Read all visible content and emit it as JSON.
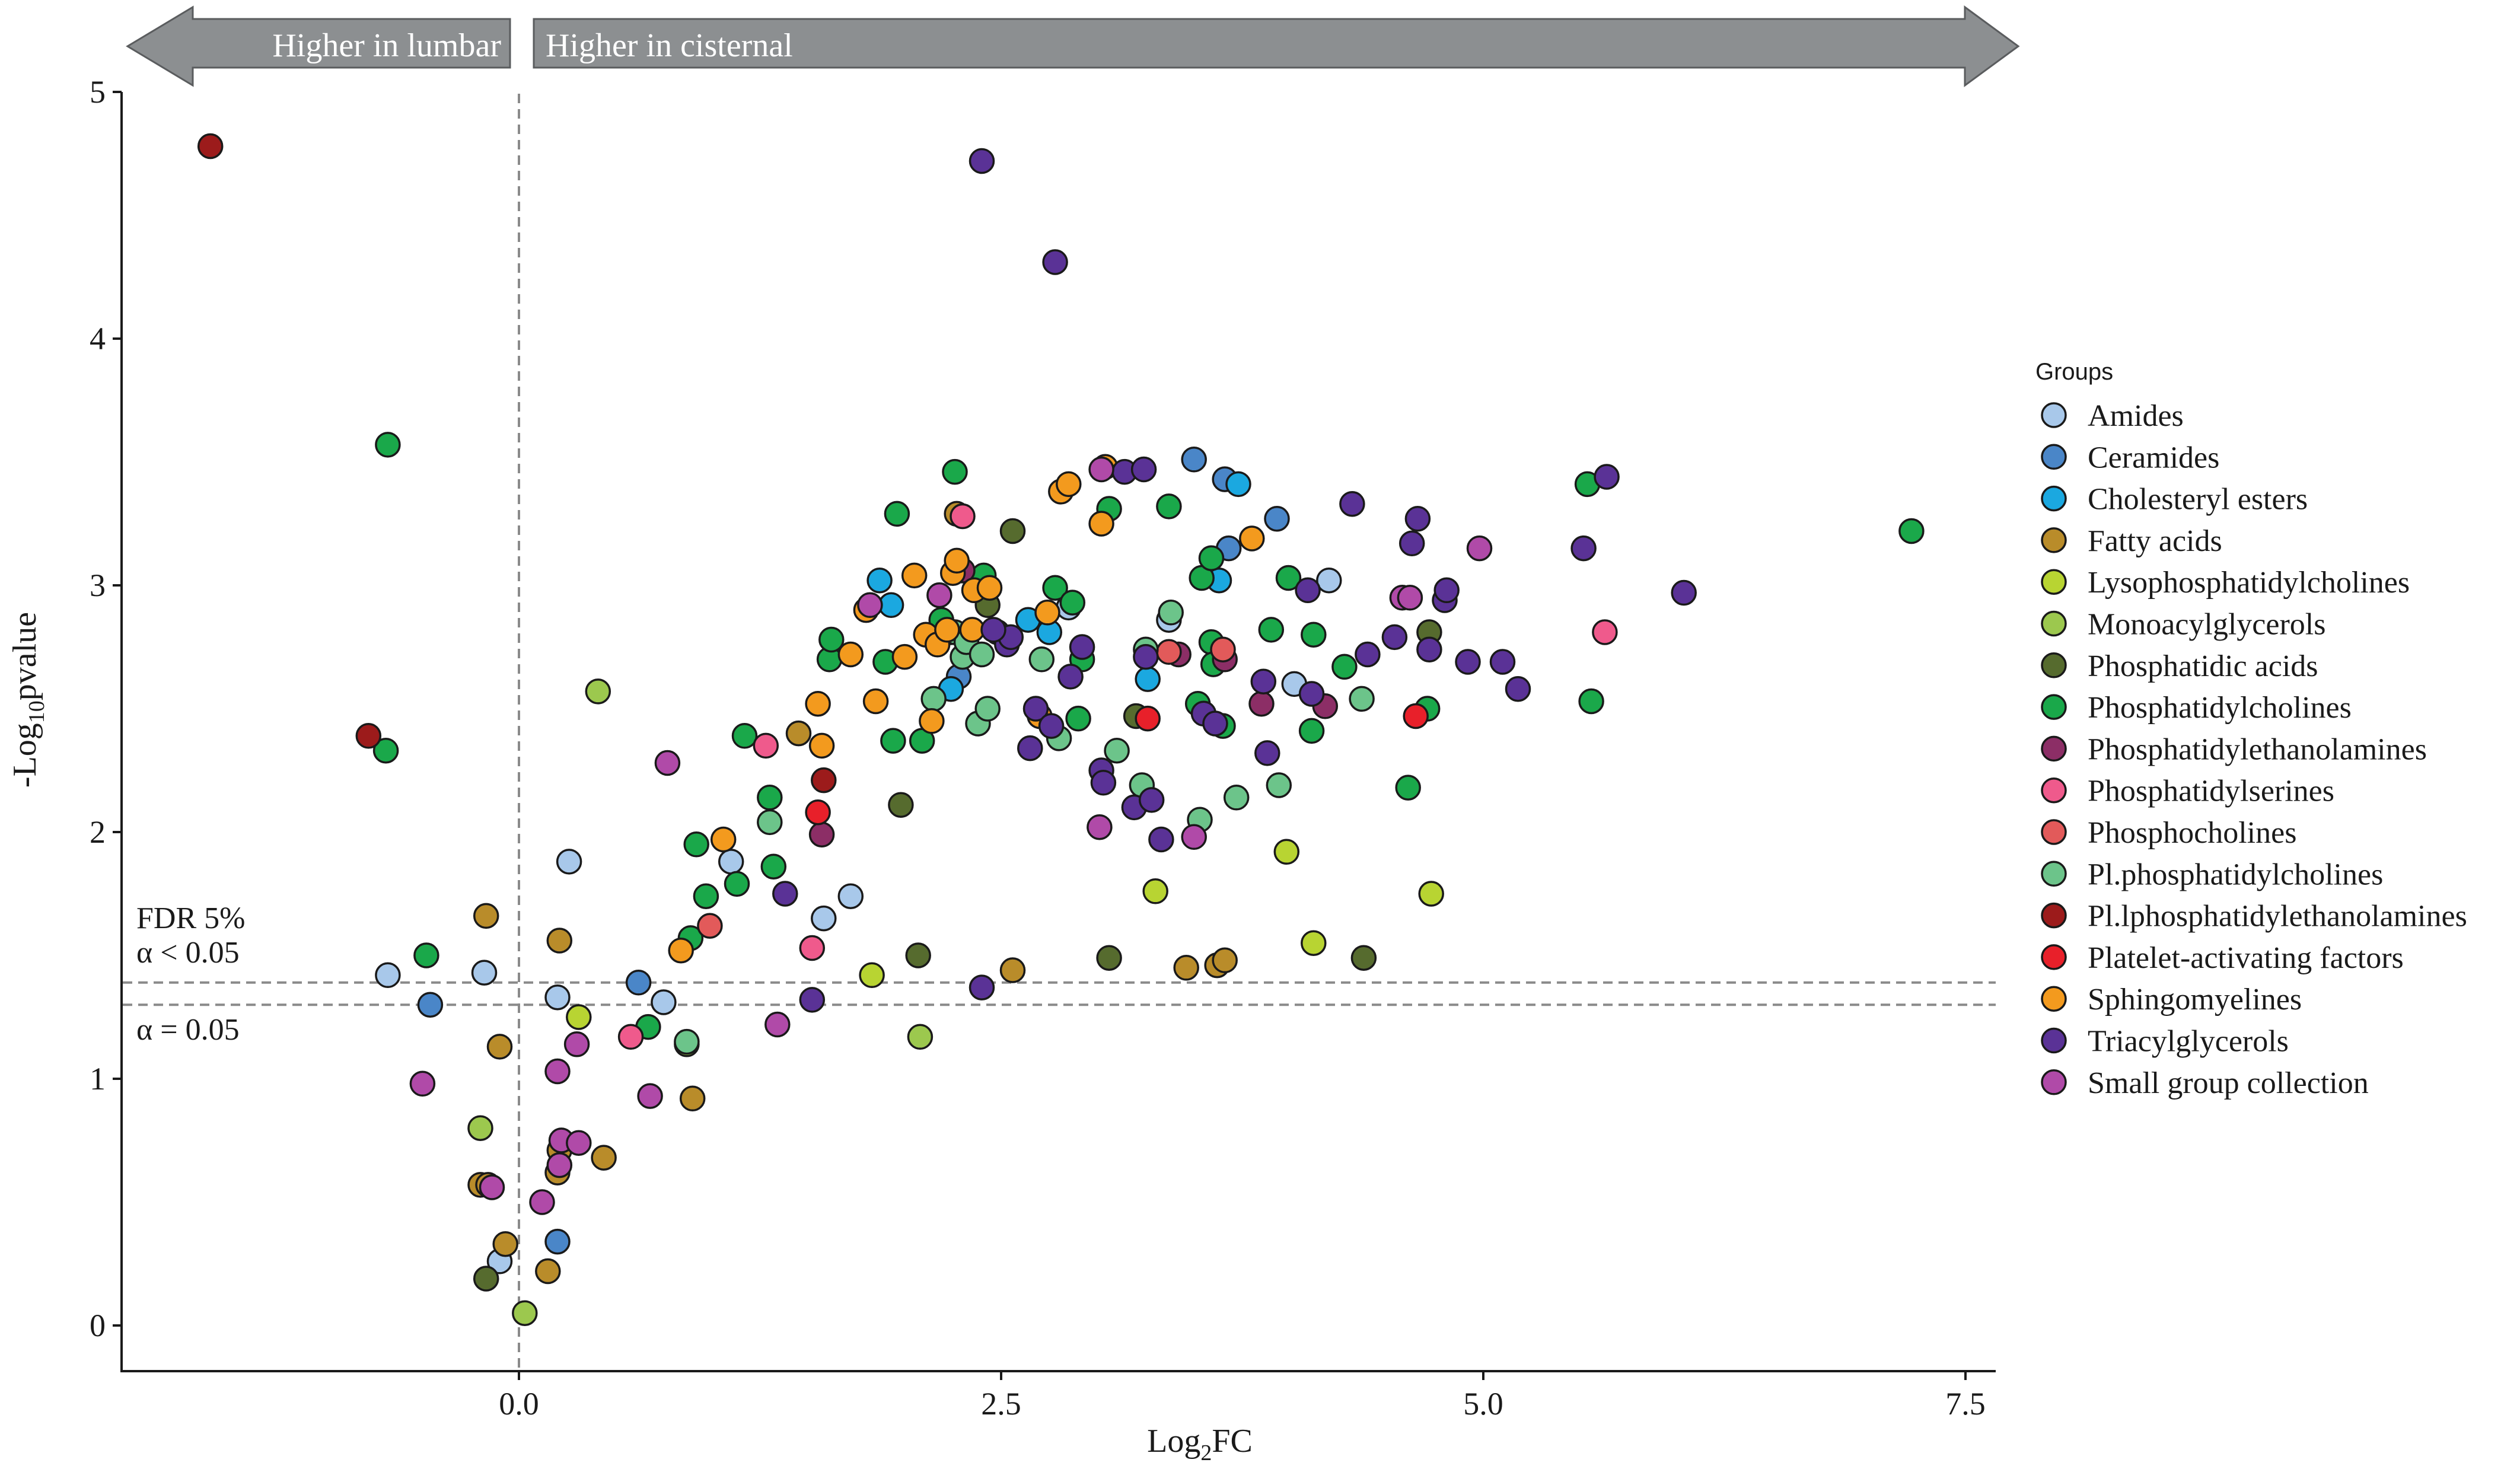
{
  "chart_data": {
    "type": "scatter",
    "title": "",
    "xlabel_base": "Log",
    "xlabel_sub": "2",
    "xlabel_rest": "FC",
    "ylabel_pre": "-Log",
    "ylabel_sub": "10",
    "ylabel_post": "pvalue",
    "xlim": [
      -2.05,
      7.7
    ],
    "ylim": [
      -0.2,
      5.05
    ],
    "xticks": [
      0.0,
      2.5,
      5.0,
      7.5
    ],
    "xtick_labels": [
      "0.0",
      "2.5",
      "5.0",
      "7.5"
    ],
    "yticks": [
      0,
      1,
      2,
      3,
      4,
      5
    ],
    "ytick_labels": [
      "0",
      "1",
      "2",
      "3",
      "4",
      "5"
    ],
    "grid": false,
    "arrows": {
      "left": "Higher in lumbar",
      "right": "Higher in cisternal"
    },
    "annotations": {
      "fdr_line1": "FDR 5%",
      "fdr_line2": "α < 0.05",
      "alpha_label": "α = 0.05"
    },
    "hlines": [
      1.39,
      1.3
    ],
    "vline": 0,
    "legend": {
      "title": "Groups",
      "position": "right"
    },
    "series": [
      {
        "name": "Amides",
        "color": "#a8c8ea",
        "points": [
          [
            -0.68,
            1.42
          ],
          [
            -0.18,
            1.43
          ],
          [
            0.2,
            1.33
          ],
          [
            0.26,
            1.88
          ],
          [
            0.75,
            1.31
          ],
          [
            1.1,
            1.88
          ],
          [
            1.58,
            1.65
          ],
          [
            1.72,
            1.74
          ],
          [
            2.85,
            2.91
          ],
          [
            3.37,
            2.86
          ],
          [
            4.02,
            2.6
          ],
          [
            4.2,
            3.02
          ],
          [
            -0.1,
            0.26
          ]
        ]
      },
      {
        "name": "Ceramides",
        "color": "#4a86c8",
        "points": [
          [
            -0.46,
            1.3
          ],
          [
            0.62,
            1.39
          ],
          [
            0.2,
            0.34
          ],
          [
            3.5,
            3.51
          ],
          [
            3.66,
            3.43
          ],
          [
            3.68,
            3.15
          ],
          [
            3.93,
            3.27
          ],
          [
            2.28,
            2.63
          ]
        ]
      },
      {
        "name": "Cholesteryl esters",
        "color": "#1ba8e0",
        "points": [
          [
            1.87,
            3.02
          ],
          [
            1.93,
            2.92
          ],
          [
            2.64,
            2.86
          ],
          [
            2.75,
            2.81
          ],
          [
            3.26,
            2.62
          ],
          [
            3.63,
            3.02
          ],
          [
            3.73,
            3.41
          ],
          [
            2.24,
            2.58
          ]
        ]
      },
      {
        "name": "Fatty acids",
        "color": "#b98c2a",
        "points": [
          [
            -0.17,
            1.66
          ],
          [
            -0.1,
            1.13
          ],
          [
            0.21,
            1.56
          ],
          [
            -0.2,
            0.57
          ],
          [
            -0.16,
            0.57
          ],
          [
            -0.07,
            0.33
          ],
          [
            0.15,
            0.22
          ],
          [
            0.2,
            0.62
          ],
          [
            0.21,
            0.71
          ],
          [
            0.44,
            0.68
          ],
          [
            0.9,
            0.92
          ],
          [
            1.45,
            2.4
          ],
          [
            2.56,
            1.44
          ],
          [
            3.46,
            1.45
          ],
          [
            3.62,
            1.46
          ],
          [
            3.66,
            1.48
          ],
          [
            2.27,
            3.29
          ]
        ]
      },
      {
        "name": "Lysophosphatidylcholines",
        "color": "#b8d432",
        "points": [
          [
            0.31,
            1.25
          ],
          [
            1.83,
            1.42
          ],
          [
            3.3,
            1.76
          ],
          [
            3.98,
            1.92
          ],
          [
            4.12,
            1.55
          ],
          [
            4.73,
            1.75
          ]
        ]
      },
      {
        "name": "Monoacylglycerols",
        "color": "#9cc84e",
        "points": [
          [
            0.41,
            2.57
          ],
          [
            -0.2,
            0.8
          ],
          [
            0.03,
            0.05
          ],
          [
            0.87,
            1.14
          ],
          [
            2.08,
            1.17
          ]
        ]
      },
      {
        "name": "Phosphatidic acids",
        "color": "#566b2e",
        "points": [
          [
            2.56,
            3.22
          ],
          [
            1.98,
            2.11
          ],
          [
            2.07,
            1.5
          ],
          [
            3.06,
            1.49
          ],
          [
            3.2,
            2.47
          ],
          [
            3.64,
            2.71
          ],
          [
            4.38,
            1.49
          ],
          [
            4.72,
            2.81
          ],
          [
            -0.17,
            0.19
          ],
          [
            2.43,
            2.92
          ]
        ]
      },
      {
        "name": "Phosphatidylcholines",
        "color": "#1aa84a",
        "points": [
          [
            -0.68,
            3.57
          ],
          [
            -0.69,
            2.33
          ],
          [
            -0.48,
            1.5
          ],
          [
            0.67,
            1.21
          ],
          [
            0.92,
            1.95
          ],
          [
            0.97,
            1.74
          ],
          [
            0.89,
            1.57
          ],
          [
            1.13,
            1.79
          ],
          [
            1.17,
            2.39
          ],
          [
            1.3,
            2.14
          ],
          [
            1.32,
            1.86
          ],
          [
            1.61,
            2.7
          ],
          [
            1.62,
            2.78
          ],
          [
            1.9,
            2.69
          ],
          [
            1.94,
            2.37
          ],
          [
            1.96,
            3.29
          ],
          [
            2.09,
            2.37
          ],
          [
            2.19,
            2.86
          ],
          [
            2.26,
            3.46
          ],
          [
            2.41,
            3.04
          ],
          [
            2.78,
            2.99
          ],
          [
            2.87,
            2.93
          ],
          [
            2.9,
            2.46
          ],
          [
            3.06,
            3.31
          ],
          [
            3.37,
            3.32
          ],
          [
            3.52,
            2.52
          ],
          [
            3.54,
            3.03
          ],
          [
            3.59,
            3.11
          ],
          [
            3.59,
            2.77
          ],
          [
            3.6,
            2.68
          ],
          [
            3.65,
            2.43
          ],
          [
            3.9,
            2.82
          ],
          [
            3.99,
            3.03
          ],
          [
            4.12,
            2.8
          ],
          [
            4.11,
            2.41
          ],
          [
            4.28,
            2.67
          ],
          [
            4.61,
            2.18
          ],
          [
            4.71,
            2.5
          ],
          [
            5.54,
            3.41
          ],
          [
            5.56,
            2.53
          ],
          [
            7.22,
            3.22
          ],
          [
            2.92,
            2.7
          ]
        ]
      },
      {
        "name": "Phosphatidylethanolamines",
        "color": "#8c2e66",
        "points": [
          [
            1.57,
            1.99
          ],
          [
            3.66,
            2.7
          ],
          [
            3.85,
            2.52
          ],
          [
            4.18,
            2.51
          ],
          [
            3.42,
            2.72
          ],
          [
            2.3,
            3.06
          ]
        ]
      },
      {
        "name": "Phosphatidylserines",
        "color": "#ef5a8c",
        "points": [
          [
            1.28,
            2.35
          ],
          [
            1.52,
            1.53
          ],
          [
            0.58,
            1.17
          ],
          [
            5.63,
            2.81
          ],
          [
            2.3,
            3.28
          ]
        ]
      },
      {
        "name": "Phosphocholines",
        "color": "#e25a5a",
        "points": [
          [
            0.99,
            1.62
          ],
          [
            3.37,
            2.73
          ],
          [
            3.65,
            2.74
          ]
        ]
      },
      {
        "name": "Pl.phosphatidylcholines",
        "color": "#6cc48a",
        "points": [
          [
            0.87,
            1.15
          ],
          [
            1.3,
            2.04
          ],
          [
            2.15,
            2.54
          ],
          [
            2.24,
            2.81
          ],
          [
            2.26,
            2.81
          ],
          [
            2.3,
            2.71
          ],
          [
            2.32,
            2.77
          ],
          [
            2.38,
            2.44
          ],
          [
            2.4,
            2.72
          ],
          [
            2.43,
            2.5
          ],
          [
            2.71,
            2.7
          ],
          [
            2.8,
            2.38
          ],
          [
            3.1,
            2.33
          ],
          [
            3.23,
            2.19
          ],
          [
            3.25,
            2.74
          ],
          [
            3.38,
            2.89
          ],
          [
            3.53,
            2.05
          ],
          [
            3.72,
            2.14
          ],
          [
            3.94,
            2.19
          ],
          [
            4.37,
            2.54
          ]
        ]
      },
      {
        "name": "Pl.lphosphatidylethanolamines",
        "color": "#9c1b1b",
        "points": [
          [
            -1.6,
            4.78
          ],
          [
            -0.78,
            2.39
          ],
          [
            1.58,
            2.21
          ]
        ]
      },
      {
        "name": "Platelet-activating factors",
        "color": "#e8202a",
        "points": [
          [
            1.55,
            2.08
          ],
          [
            3.26,
            2.46
          ],
          [
            4.65,
            2.47
          ]
        ]
      },
      {
        "name": "Sphingomyelines",
        "color": "#f39a1e",
        "points": [
          [
            0.84,
            1.52
          ],
          [
            1.06,
            1.97
          ],
          [
            1.55,
            2.52
          ],
          [
            1.57,
            2.35
          ],
          [
            1.72,
            2.72
          ],
          [
            1.8,
            2.9
          ],
          [
            1.85,
            2.53
          ],
          [
            2.0,
            2.71
          ],
          [
            2.05,
            3.04
          ],
          [
            2.11,
            2.8
          ],
          [
            2.14,
            2.45
          ],
          [
            2.17,
            2.76
          ],
          [
            2.22,
            2.82
          ],
          [
            2.25,
            3.05
          ],
          [
            2.27,
            3.1
          ],
          [
            2.35,
            2.82
          ],
          [
            2.36,
            2.98
          ],
          [
            2.44,
            2.99
          ],
          [
            2.7,
            2.47
          ],
          [
            2.74,
            2.89
          ],
          [
            2.81,
            3.38
          ],
          [
            2.85,
            3.41
          ],
          [
            3.02,
            3.25
          ],
          [
            3.04,
            3.48
          ],
          [
            3.8,
            3.19
          ]
        ]
      },
      {
        "name": "Triacylglycerols",
        "color": "#5a3296",
        "points": [
          [
            1.38,
            1.75
          ],
          [
            1.52,
            1.32
          ],
          [
            2.4,
            1.37
          ],
          [
            2.4,
            4.72
          ],
          [
            2.78,
            4.31
          ],
          [
            2.48,
            2.81
          ],
          [
            2.53,
            2.76
          ],
          [
            2.55,
            2.79
          ],
          [
            2.65,
            2.34
          ],
          [
            2.68,
            2.5
          ],
          [
            2.76,
            2.43
          ],
          [
            2.86,
            2.63
          ],
          [
            2.92,
            2.75
          ],
          [
            3.02,
            2.25
          ],
          [
            3.03,
            2.2
          ],
          [
            3.14,
            3.46
          ],
          [
            3.19,
            2.1
          ],
          [
            3.24,
            3.47
          ],
          [
            3.25,
            2.71
          ],
          [
            3.28,
            2.13
          ],
          [
            3.33,
            1.97
          ],
          [
            3.55,
            2.48
          ],
          [
            3.61,
            2.44
          ],
          [
            3.86,
            2.61
          ],
          [
            3.88,
            2.32
          ],
          [
            4.09,
            2.98
          ],
          [
            4.32,
            3.33
          ],
          [
            4.4,
            2.72
          ],
          [
            4.54,
            2.79
          ],
          [
            4.63,
            3.17
          ],
          [
            4.66,
            3.27
          ],
          [
            4.72,
            2.74
          ],
          [
            4.8,
            2.94
          ],
          [
            4.81,
            2.98
          ],
          [
            4.92,
            2.69
          ],
          [
            5.1,
            2.69
          ],
          [
            5.18,
            2.58
          ],
          [
            5.52,
            3.15
          ],
          [
            5.64,
            3.44
          ],
          [
            6.04,
            2.97
          ],
          [
            2.46,
            2.82
          ],
          [
            4.11,
            2.56
          ]
        ]
      },
      {
        "name": "Small group collection",
        "color": "#b04aa8",
        "points": [
          [
            -0.5,
            0.98
          ],
          [
            -0.14,
            0.56
          ],
          [
            0.12,
            0.5
          ],
          [
            0.2,
            1.03
          ],
          [
            0.21,
            0.65
          ],
          [
            0.22,
            0.75
          ],
          [
            0.3,
            1.14
          ],
          [
            0.31,
            0.74
          ],
          [
            0.77,
            2.28
          ],
          [
            0.68,
            0.93
          ],
          [
            1.34,
            1.22
          ],
          [
            1.82,
            2.92
          ],
          [
            2.18,
            2.96
          ],
          [
            3.01,
            2.02
          ],
          [
            3.02,
            3.47
          ],
          [
            3.5,
            1.98
          ],
          [
            4.58,
            2.95
          ],
          [
            4.62,
            2.95
          ],
          [
            4.98,
            3.15
          ]
        ]
      }
    ]
  }
}
